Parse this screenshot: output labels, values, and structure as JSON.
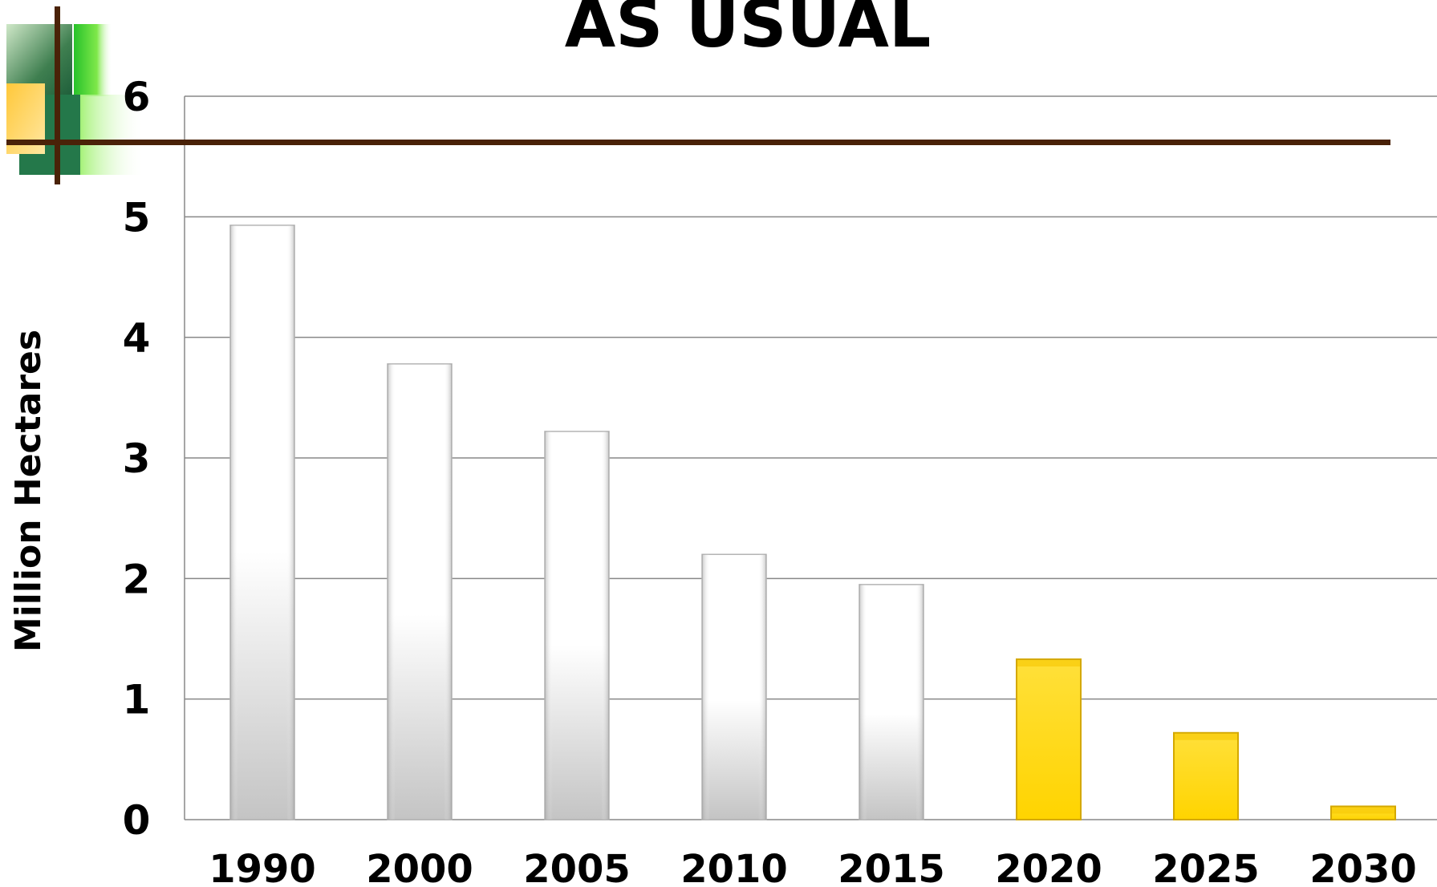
{
  "slide": {
    "title": "AS USUAL"
  },
  "colors": {
    "historical_bar_top": "#ffffff",
    "historical_bar_bottom": "#c8c8c8",
    "projected_bar": "#ffd700",
    "projected_bar_edge": "#d4a800",
    "gridline": "#888888",
    "accent_line": "#4a2208",
    "deco_dark_green": "#1e5e3a",
    "deco_light_green": "#7fe84a",
    "deco_yellow": "#ffd24a"
  },
  "chart_data": {
    "type": "bar",
    "title": "AS USUAL",
    "xlabel": "",
    "ylabel": "Million Hectares",
    "ylim": [
      0,
      6
    ],
    "yticks": [
      0,
      1,
      2,
      3,
      4,
      5,
      6
    ],
    "grid": true,
    "legend": "none",
    "categories": [
      "1990",
      "2000",
      "2005",
      "2010",
      "2015",
      "2020",
      "2025",
      "2030"
    ],
    "values": [
      4.93,
      3.78,
      3.22,
      2.2,
      1.95,
      1.33,
      0.72,
      0.11
    ],
    "projected": [
      false,
      false,
      false,
      false,
      false,
      true,
      true,
      true
    ]
  }
}
